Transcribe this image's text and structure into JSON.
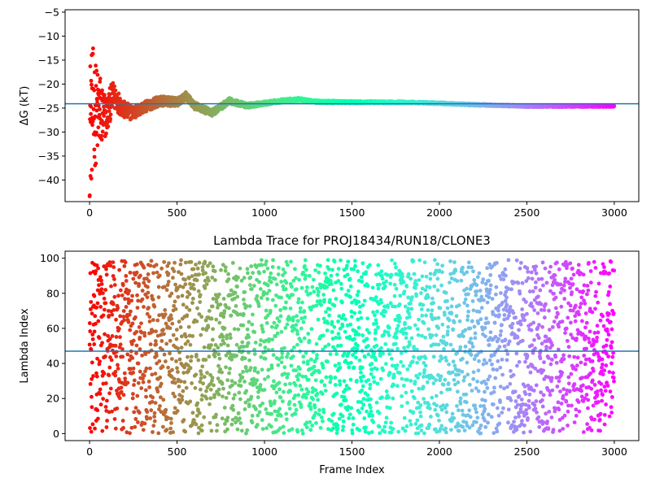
{
  "colors": {
    "ref_line": "#1f77b4",
    "colormap": "rainbow"
  },
  "chart_data": [
    {
      "type": "scatter",
      "title": "",
      "xlabel": "",
      "ylabel": "ΔG (kT)",
      "xlim": [
        -140,
        3140
      ],
      "ylim": [
        -44.5,
        -4.5
      ],
      "xticks": [
        0,
        500,
        1000,
        1500,
        2000,
        2500,
        3000
      ],
      "yticks": [
        -40,
        -35,
        -30,
        -25,
        -20,
        -15,
        -10,
        -5
      ],
      "ref_line_y": -24.1,
      "n_points": 3000,
      "trend": {
        "x": [
          0,
          20,
          40,
          60,
          80,
          100,
          130,
          160,
          200,
          250,
          300,
          400,
          500,
          550,
          600,
          700,
          800,
          900,
          1000,
          1100,
          1200,
          1300,
          1500,
          1800,
          2000,
          2200,
          2500,
          2800,
          3000
        ],
        "y": [
          -29,
          -25,
          -26.5,
          -25.5,
          -27,
          -26.5,
          -22.5,
          -23.5,
          -25.5,
          -26,
          -25,
          -23.5,
          -23.8,
          -22.5,
          -24.5,
          -26,
          -23.5,
          -24.5,
          -24,
          -23.5,
          -23.2,
          -23.7,
          -23.8,
          -23.8,
          -24.0,
          -24.3,
          -24.6,
          -24.6,
          -24.6
        ]
      },
      "noise": {
        "x": [
          0,
          50,
          100,
          150,
          200,
          300,
          500,
          800,
          1000,
          1500,
          3000
        ],
        "amp": [
          15,
          9,
          4,
          2.5,
          1.8,
          1.2,
          0.9,
          0.6,
          0.4,
          0.25,
          0.15
        ]
      }
    },
    {
      "type": "scatter",
      "title": "Lambda Trace for PROJ18434/RUN18/CLONE3",
      "xlabel": "Frame Index",
      "ylabel": "Lambda Index",
      "xlim": [
        -140,
        3140
      ],
      "ylim": [
        -4,
        104
      ],
      "xticks": [
        0,
        500,
        1000,
        1500,
        2000,
        2500,
        3000
      ],
      "yticks": [
        0,
        20,
        40,
        60,
        80,
        100
      ],
      "ref_line_y": 47,
      "n_points": 3000,
      "y_range": [
        0,
        99
      ]
    }
  ]
}
